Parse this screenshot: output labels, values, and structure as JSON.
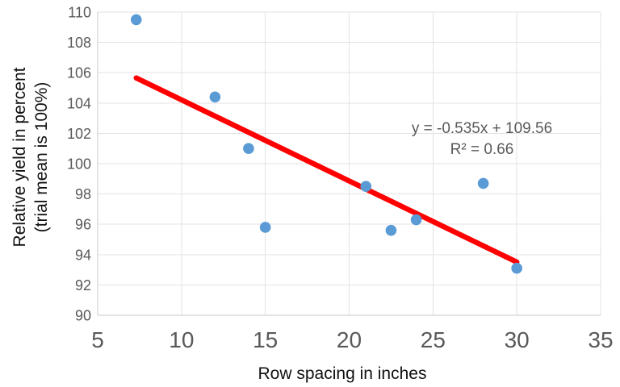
{
  "chart_data": {
    "type": "scatter",
    "title": "",
    "xlabel": "Row spacing in inches",
    "ylabel_line1": "Relative yield in percent",
    "ylabel_line2": "(trial mean is 100%)",
    "xlim": [
      5,
      35
    ],
    "ylim": [
      90,
      110
    ],
    "xticks": [
      5,
      10,
      15,
      20,
      25,
      30,
      35
    ],
    "yticks": [
      90,
      92,
      94,
      96,
      98,
      100,
      102,
      104,
      106,
      108,
      110
    ],
    "grid": true,
    "legend": "none",
    "points": [
      {
        "x": 7.3,
        "y": 109.5
      },
      {
        "x": 12.0,
        "y": 104.4
      },
      {
        "x": 14.0,
        "y": 101.0
      },
      {
        "x": 15.0,
        "y": 95.8
      },
      {
        "x": 21.0,
        "y": 98.5
      },
      {
        "x": 22.5,
        "y": 95.6
      },
      {
        "x": 24.0,
        "y": 96.3
      },
      {
        "x": 28.0,
        "y": 98.7
      },
      {
        "x": 30.0,
        "y": 93.1
      }
    ],
    "trendline": {
      "slope": -0.535,
      "intercept": 109.56,
      "x_start": 7.3,
      "x_end": 30.0
    },
    "annotation": {
      "equation": "y = -0.535x + 109.56",
      "r_squared": "R² = 0.66"
    },
    "colors": {
      "marker": "#5B9BD5",
      "trendline": "#FF0000",
      "gridline": "#E3E3E3",
      "axis_line": "#C9C9C9",
      "tick_label": "#595959",
      "axis_title": "#111111",
      "annotation_text": "#595959",
      "background": "#FFFFFF"
    }
  }
}
